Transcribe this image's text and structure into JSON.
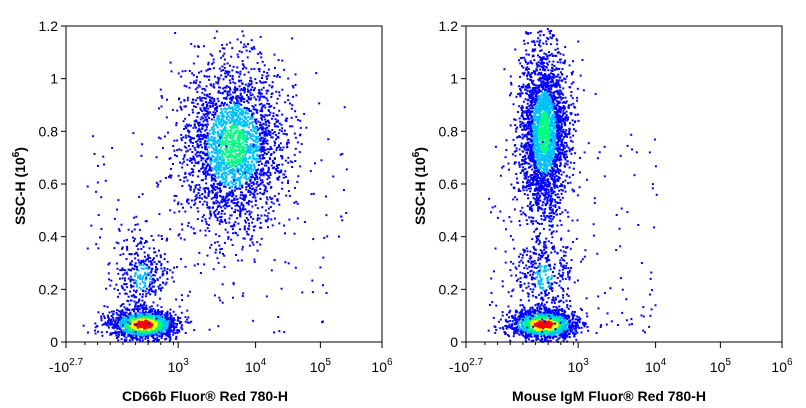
{
  "chart_data": [
    {
      "type": "scatter",
      "style": "flow-cytometry density dot plot",
      "xlabel": "CD66b Fluor® Red 780-H",
      "ylabel": "SSC-H (10",
      "ylabel_exp": "6",
      "ylabel_close": ")",
      "x_scale": "biexponential",
      "x_ticks": [
        {
          "label": "-10",
          "exp": "2.7",
          "value": -501
        },
        {
          "label": "10",
          "exp": "3",
          "value": 1000
        },
        {
          "label": "10",
          "exp": "4",
          "value": 10000
        },
        {
          "label": "10",
          "exp": "5",
          "value": 100000
        },
        {
          "label": "10",
          "exp": "6",
          "value": 1000000
        }
      ],
      "y_ticks": [
        "0",
        "0.2",
        "0.4",
        "0.6",
        "0.8",
        "1",
        "1.2"
      ],
      "ylim": [
        0,
        1.2
      ],
      "populations": [
        {
          "name": "",
          "x_center": 320,
          "y_center": 0.07,
          "density": "high"
        },
        {
          "name": "",
          "x_center": 300,
          "y_center": 0.25,
          "density": "low"
        },
        {
          "name": "",
          "x_center": 5000,
          "y_center": 0.75,
          "density": "medium"
        }
      ]
    },
    {
      "type": "scatter",
      "style": "flow-cytometry density dot plot",
      "xlabel": "Mouse IgM Fluor® Red 780-H",
      "ylabel": "SSC-H (10",
      "ylabel_exp": "6",
      "ylabel_close": ")",
      "x_scale": "biexponential",
      "x_ticks": [
        {
          "label": "-10",
          "exp": "2.7",
          "value": -501
        },
        {
          "label": "10",
          "exp": "3",
          "value": 1000
        },
        {
          "label": "10",
          "exp": "4",
          "value": 10000
        },
        {
          "label": "10",
          "exp": "5",
          "value": 100000
        },
        {
          "label": "10",
          "exp": "6",
          "value": 1000000
        }
      ],
      "y_ticks": [
        "0",
        "0.2",
        "0.4",
        "0.6",
        "0.8",
        "1",
        "1.2"
      ],
      "ylim": [
        0,
        1.2
      ],
      "populations": [
        {
          "name": "",
          "x_center": 320,
          "y_center": 0.07,
          "density": "high"
        },
        {
          "name": "",
          "x_center": 320,
          "y_center": 0.25,
          "density": "low"
        },
        {
          "name": "",
          "x_center": 330,
          "y_center": 0.8,
          "density": "medium"
        }
      ]
    }
  ],
  "colors": {
    "density_low": "#0000ff",
    "density_mid_low": "#00c0ff",
    "density_mid": "#00ff80",
    "density_mid_high": "#ffff00",
    "density_high": "#ff0000"
  }
}
